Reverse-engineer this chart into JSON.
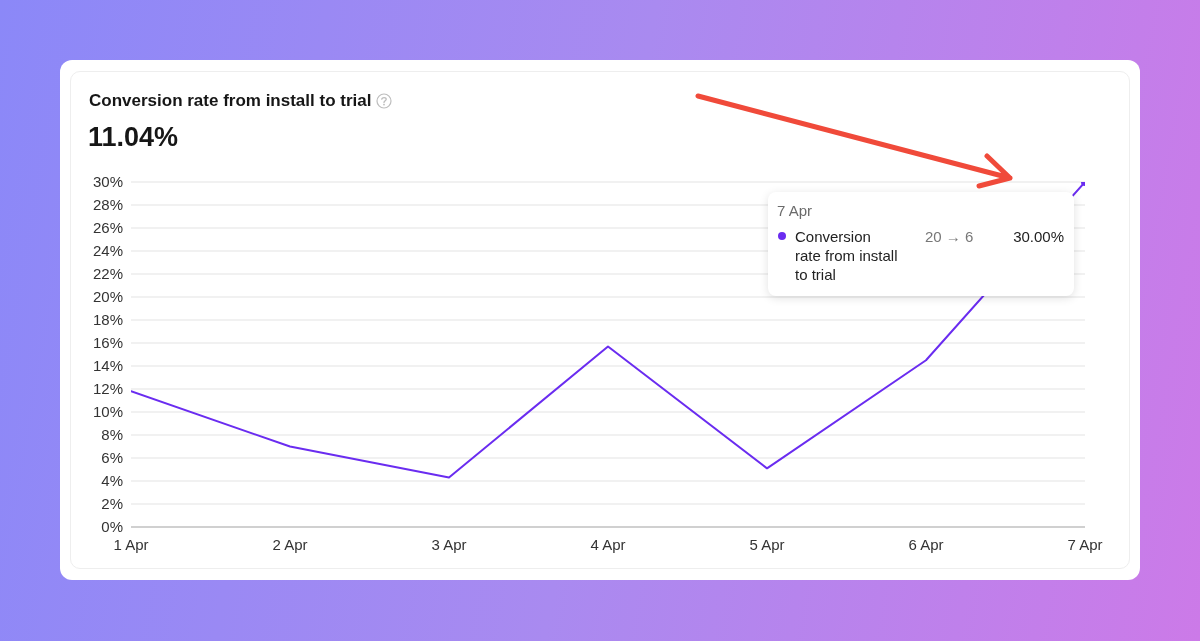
{
  "chart_data": {
    "type": "line",
    "title": "Conversion rate from install to trial",
    "subtitle": "11.04%",
    "categories": [
      "1 Apr",
      "2 Apr",
      "3 Apr",
      "4 Apr",
      "5 Apr",
      "6 Apr",
      "7 Apr"
    ],
    "series": [
      {
        "name": "Conversion rate from install to trial",
        "color": "#6a2cf0",
        "values": [
          11.8,
          7.0,
          4.3,
          15.7,
          5.1,
          14.5,
          30
        ]
      },
      {
        "type": "scatter",
        "color": "#6a2cf0",
        "x": [
          "7 Apr"
        ],
        "values": [
          30
        ],
        "marker": "circle"
      }
    ],
    "ylim": [
      0,
      30
    ],
    "yticks": [
      {
        "value": 0,
        "label": "0%"
      },
      {
        "value": 2,
        "label": "2%"
      },
      {
        "value": 4,
        "label": "4%"
      },
      {
        "value": 6,
        "label": "6%"
      },
      {
        "value": 8,
        "label": "8%"
      },
      {
        "value": 10,
        "label": "10%"
      },
      {
        "value": 12,
        "label": "12%"
      },
      {
        "value": 14,
        "label": "14%"
      },
      {
        "value": 16,
        "label": "16%"
      },
      {
        "value": 18,
        "label": "18%"
      },
      {
        "value": 20,
        "label": "20%"
      },
      {
        "value": 22,
        "label": "22%"
      },
      {
        "value": 24,
        "label": "24%"
      },
      {
        "value": 26,
        "label": "26%"
      },
      {
        "value": 28,
        "label": "28%"
      },
      {
        "value": 30,
        "label": "30%"
      }
    ],
    "grid": "y",
    "marker": "none",
    "annotations": [
      "7 Apr",
      "20 → 6",
      "30.00%"
    ]
  }
}
